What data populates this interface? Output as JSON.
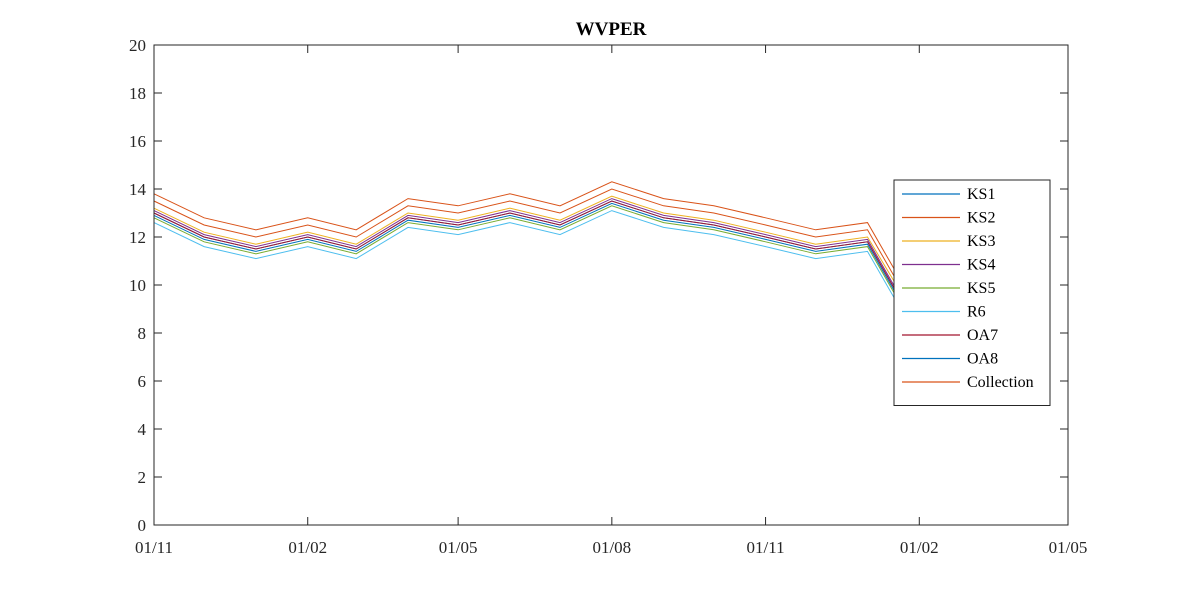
{
  "chart_data": {
    "type": "line",
    "title": "WVPER",
    "xlabel": "",
    "ylabel": "",
    "ylim": [
      0,
      20
    ],
    "yticks": [
      0,
      2,
      4,
      6,
      8,
      10,
      12,
      14,
      16,
      18,
      20
    ],
    "xlim": [
      "2019-11-01",
      "2021-05-01"
    ],
    "xticks": [
      {
        "date": "2019-11-01",
        "label": "01/11"
      },
      {
        "date": "2020-02-01",
        "label": "01/02"
      },
      {
        "date": "2020-05-01",
        "label": "01/05"
      },
      {
        "date": "2020-08-01",
        "label": "01/08"
      },
      {
        "date": "2020-11-01",
        "label": "01/11"
      },
      {
        "date": "2021-02-01",
        "label": "01/02"
      },
      {
        "date": "2021-05-01",
        "label": "01/05"
      }
    ],
    "grid": false,
    "legend_position": "right",
    "series": [
      {
        "name": "KS1",
        "color": "#0072BD",
        "dates": [
          "2019-11-01",
          "2019-12-01",
          "2020-01-01",
          "2020-02-01",
          "2020-03-01",
          "2020-04-01",
          "2020-05-01",
          "2020-06-01",
          "2020-07-01",
          "2020-08-01",
          "2020-09-01",
          "2020-10-01",
          "2020-11-01",
          "2020-12-01",
          "2021-01-01",
          "2021-01-20"
        ],
        "values": [
          13.0,
          12.0,
          11.5,
          12.0,
          11.5,
          12.8,
          12.5,
          13.0,
          12.5,
          13.5,
          12.8,
          12.5,
          12.0,
          11.5,
          11.8,
          9.5
        ]
      },
      {
        "name": "KS2",
        "color": "#D95319",
        "dates": [
          "2019-11-01",
          "2019-12-01",
          "2020-01-01",
          "2020-02-01",
          "2020-03-01",
          "2020-04-01",
          "2020-05-01",
          "2020-06-01",
          "2020-07-01",
          "2020-08-01",
          "2020-09-01",
          "2020-10-01",
          "2020-11-01",
          "2020-12-01",
          "2021-01-01",
          "2021-01-20"
        ],
        "values": [
          13.5,
          12.5,
          12.0,
          12.5,
          12.0,
          13.3,
          13.0,
          13.5,
          13.0,
          14.0,
          13.3,
          13.0,
          12.5,
          12.0,
          12.3,
          10.0
        ]
      },
      {
        "name": "KS3",
        "color": "#EDB120",
        "dates": [
          "2019-11-01",
          "2019-12-01",
          "2020-01-01",
          "2020-02-01",
          "2020-03-01",
          "2020-04-01",
          "2020-05-01",
          "2020-06-01",
          "2020-07-01",
          "2020-08-01",
          "2020-09-01",
          "2020-10-01",
          "2020-11-01",
          "2020-12-01",
          "2021-01-01",
          "2021-01-20"
        ],
        "values": [
          13.2,
          12.2,
          11.7,
          12.2,
          11.7,
          13.0,
          12.7,
          13.2,
          12.7,
          13.7,
          13.0,
          12.7,
          12.2,
          11.7,
          12.0,
          9.8
        ]
      },
      {
        "name": "KS4",
        "color": "#7E2F8E",
        "dates": [
          "2019-11-01",
          "2019-12-01",
          "2020-01-01",
          "2020-02-01",
          "2020-03-01",
          "2020-04-01",
          "2020-05-01",
          "2020-06-01",
          "2020-07-01",
          "2020-08-01",
          "2020-09-01",
          "2020-10-01",
          "2020-11-01",
          "2020-12-01",
          "2021-01-01",
          "2021-01-20"
        ],
        "values": [
          13.1,
          12.1,
          11.6,
          12.1,
          11.6,
          12.9,
          12.6,
          13.1,
          12.6,
          13.6,
          12.9,
          12.6,
          12.1,
          11.6,
          11.9,
          9.6
        ]
      },
      {
        "name": "KS5",
        "color": "#77AC30",
        "dates": [
          "2019-11-01",
          "2019-12-01",
          "2020-01-01",
          "2020-02-01",
          "2020-03-01",
          "2020-04-01",
          "2020-05-01",
          "2020-06-01",
          "2020-07-01",
          "2020-08-01",
          "2020-09-01",
          "2020-10-01",
          "2020-11-01",
          "2020-12-01",
          "2021-01-01",
          "2021-01-20"
        ],
        "values": [
          12.8,
          11.8,
          11.3,
          11.8,
          11.3,
          12.6,
          12.3,
          12.8,
          12.3,
          13.3,
          12.6,
          12.3,
          11.8,
          11.3,
          11.6,
          9.3
        ]
      },
      {
        "name": "R6",
        "color": "#4DBEEE",
        "dates": [
          "2019-11-01",
          "2019-12-01",
          "2020-01-01",
          "2020-02-01",
          "2020-03-01",
          "2020-04-01",
          "2020-05-01",
          "2020-06-01",
          "2020-07-01",
          "2020-08-01",
          "2020-09-01",
          "2020-10-01",
          "2020-11-01",
          "2020-12-01",
          "2021-01-01",
          "2021-01-20"
        ],
        "values": [
          12.6,
          11.6,
          11.1,
          11.6,
          11.1,
          12.4,
          12.1,
          12.6,
          12.1,
          13.1,
          12.4,
          12.1,
          11.6,
          11.1,
          11.4,
          9.1
        ]
      },
      {
        "name": "OA7",
        "color": "#A2142F",
        "dates": [
          "2019-11-01",
          "2019-12-01",
          "2020-01-01",
          "2020-02-01",
          "2020-03-01",
          "2020-04-01",
          "2020-05-01",
          "2020-06-01",
          "2020-07-01",
          "2020-08-01",
          "2020-09-01",
          "2020-10-01",
          "2020-11-01",
          "2020-12-01",
          "2021-01-01",
          "2021-01-20"
        ],
        "values": [
          13.0,
          12.0,
          11.5,
          12.0,
          11.5,
          12.8,
          12.5,
          13.0,
          12.5,
          13.5,
          12.8,
          12.5,
          12.0,
          11.5,
          11.8,
          9.5
        ]
      },
      {
        "name": "OA8",
        "color": "#0072BD",
        "dates": [
          "2019-11-01",
          "2019-12-01",
          "2020-01-01",
          "2020-02-01",
          "2020-03-01",
          "2020-04-01",
          "2020-05-01",
          "2020-06-01",
          "2020-07-01",
          "2020-08-01",
          "2020-09-01",
          "2020-10-01",
          "2020-11-01",
          "2020-12-01",
          "2021-01-01",
          "2021-01-20"
        ],
        "values": [
          12.9,
          11.9,
          11.4,
          11.9,
          11.4,
          12.7,
          12.4,
          12.9,
          12.4,
          13.4,
          12.7,
          12.4,
          11.9,
          11.4,
          11.7,
          9.4
        ]
      },
      {
        "name": "Collection",
        "color": "#D95319",
        "dates": [
          "2019-11-01",
          "2019-12-01",
          "2020-01-01",
          "2020-02-01",
          "2020-03-01",
          "2020-04-01",
          "2020-05-01",
          "2020-06-01",
          "2020-07-01",
          "2020-08-01",
          "2020-09-01",
          "2020-10-01",
          "2020-11-01",
          "2020-12-01",
          "2021-01-01",
          "2021-01-20"
        ],
        "values": [
          13.8,
          12.8,
          12.3,
          12.8,
          12.3,
          13.6,
          13.3,
          13.8,
          13.3,
          14.3,
          13.6,
          13.3,
          12.8,
          12.3,
          12.6,
          10.3
        ]
      }
    ]
  }
}
